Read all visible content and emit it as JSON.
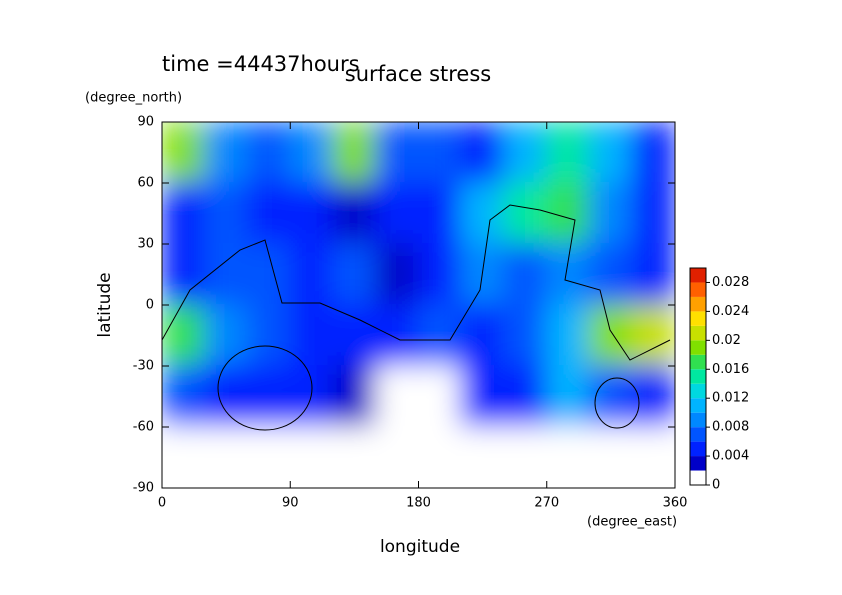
{
  "chart_data": {
    "type": "contour",
    "title": "surface stress",
    "subtitle": "time =44437hours",
    "x_label": "longitude",
    "y_label": "latitude",
    "x_unit": "(degree_east)",
    "y_unit": "(degree_north)",
    "xlim": [
      0,
      360
    ],
    "xticks": [
      0,
      90,
      180,
      270,
      360
    ],
    "ylim": [
      -90,
      90
    ],
    "yticks": [
      -90,
      -60,
      -30,
      0,
      30,
      60,
      90
    ],
    "x": [
      15,
      45,
      75,
      105,
      135,
      165,
      195,
      225,
      255,
      285,
      315,
      345
    ],
    "y": [
      75,
      45,
      15,
      -15,
      -45,
      -75
    ],
    "z": [
      [
        0.018,
        0.008,
        0.006,
        0.008,
        0.018,
        0.006,
        0.006,
        0.004,
        0.01,
        0.014,
        0.01,
        0.004
      ],
      [
        0.004,
        0.006,
        0.004,
        0.004,
        0.002,
        0.004,
        0.004,
        0.01,
        0.014,
        0.016,
        0.008,
        0.004
      ],
      [
        0.004,
        0.006,
        0.006,
        0.004,
        0.006,
        0.002,
        0.004,
        0.008,
        0.006,
        0.008,
        0.006,
        0.004
      ],
      [
        0.016,
        0.008,
        0.006,
        0.004,
        0.004,
        0.004,
        0.006,
        0.004,
        0.006,
        0.01,
        0.018,
        0.02
      ],
      [
        0.006,
        0.004,
        0.004,
        0.004,
        0.002,
        0,
        0,
        0.004,
        0.004,
        0.01,
        0.006,
        0.004
      ],
      [
        0,
        0,
        0,
        0,
        0,
        0,
        0,
        0,
        0,
        0,
        0,
        0
      ]
    ],
    "colorbar": {
      "lim": [
        0,
        0.03
      ],
      "ticks": [
        0,
        0.004,
        0.008,
        0.012,
        0.016,
        0.02,
        0.024,
        0.028
      ],
      "step": 0.002,
      "colors": [
        "#ffffff",
        "#0000c8",
        "#0022ff",
        "#0055ff",
        "#0088ff",
        "#00b4ff",
        "#00d8e0",
        "#00e8a0",
        "#30e050",
        "#80e000",
        "#c8e000",
        "#ffe000",
        "#ffa000",
        "#ff6000",
        "#e02000"
      ]
    }
  }
}
